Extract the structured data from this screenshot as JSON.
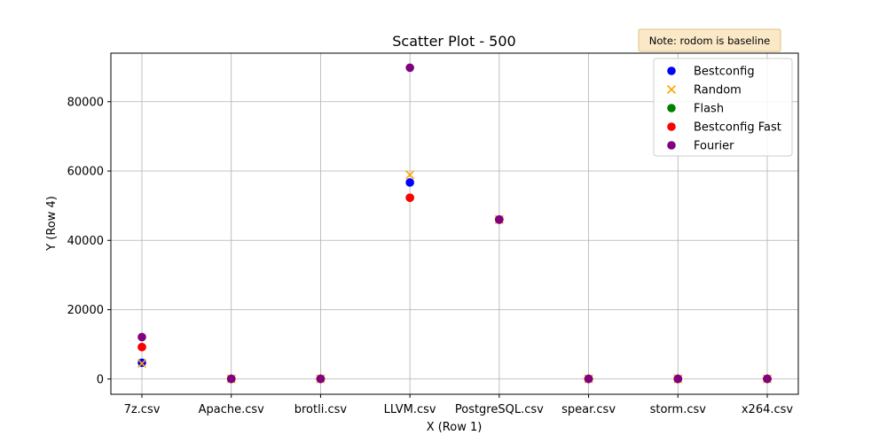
{
  "note": "Note: rodom is baseline",
  "chart_data": {
    "type": "scatter",
    "title": "Scatter Plot - 500",
    "xlabel": "X (Row 1)",
    "ylabel": "Y (Row 4)",
    "categories": [
      "7z.csv",
      "Apache.csv",
      "brotli.csv",
      "LLVM.csv",
      "PostgreSQL.csv",
      "spear.csv",
      "storm.csv",
      "x264.csv"
    ],
    "ylim": [
      -4400,
      94000
    ],
    "yticks": [
      0,
      20000,
      40000,
      60000,
      80000
    ],
    "grid": true,
    "legend_position": "top-right",
    "series": [
      {
        "name": "Bestconfig",
        "color": "#0000ff",
        "marker": "circle",
        "values": [
          4700,
          50,
          50,
          56700,
          46000,
          50,
          50,
          50
        ]
      },
      {
        "name": "Random",
        "color": "#ffa500",
        "marker": "x",
        "values": [
          4500,
          50,
          50,
          58900,
          46000,
          50,
          50,
          50
        ]
      },
      {
        "name": "Flash",
        "color": "#008000",
        "marker": "circle",
        "values": [
          9200,
          50,
          50,
          52300,
          46000,
          50,
          50,
          50
        ]
      },
      {
        "name": "Bestconfig Fast",
        "color": "#ff0000",
        "marker": "circle",
        "values": [
          9200,
          50,
          50,
          52300,
          46000,
          50,
          50,
          50
        ]
      },
      {
        "name": "Fourier",
        "color": "#800080",
        "marker": "circle",
        "values": [
          12100,
          50,
          50,
          89800,
          46000,
          50,
          50,
          50
        ]
      }
    ]
  }
}
